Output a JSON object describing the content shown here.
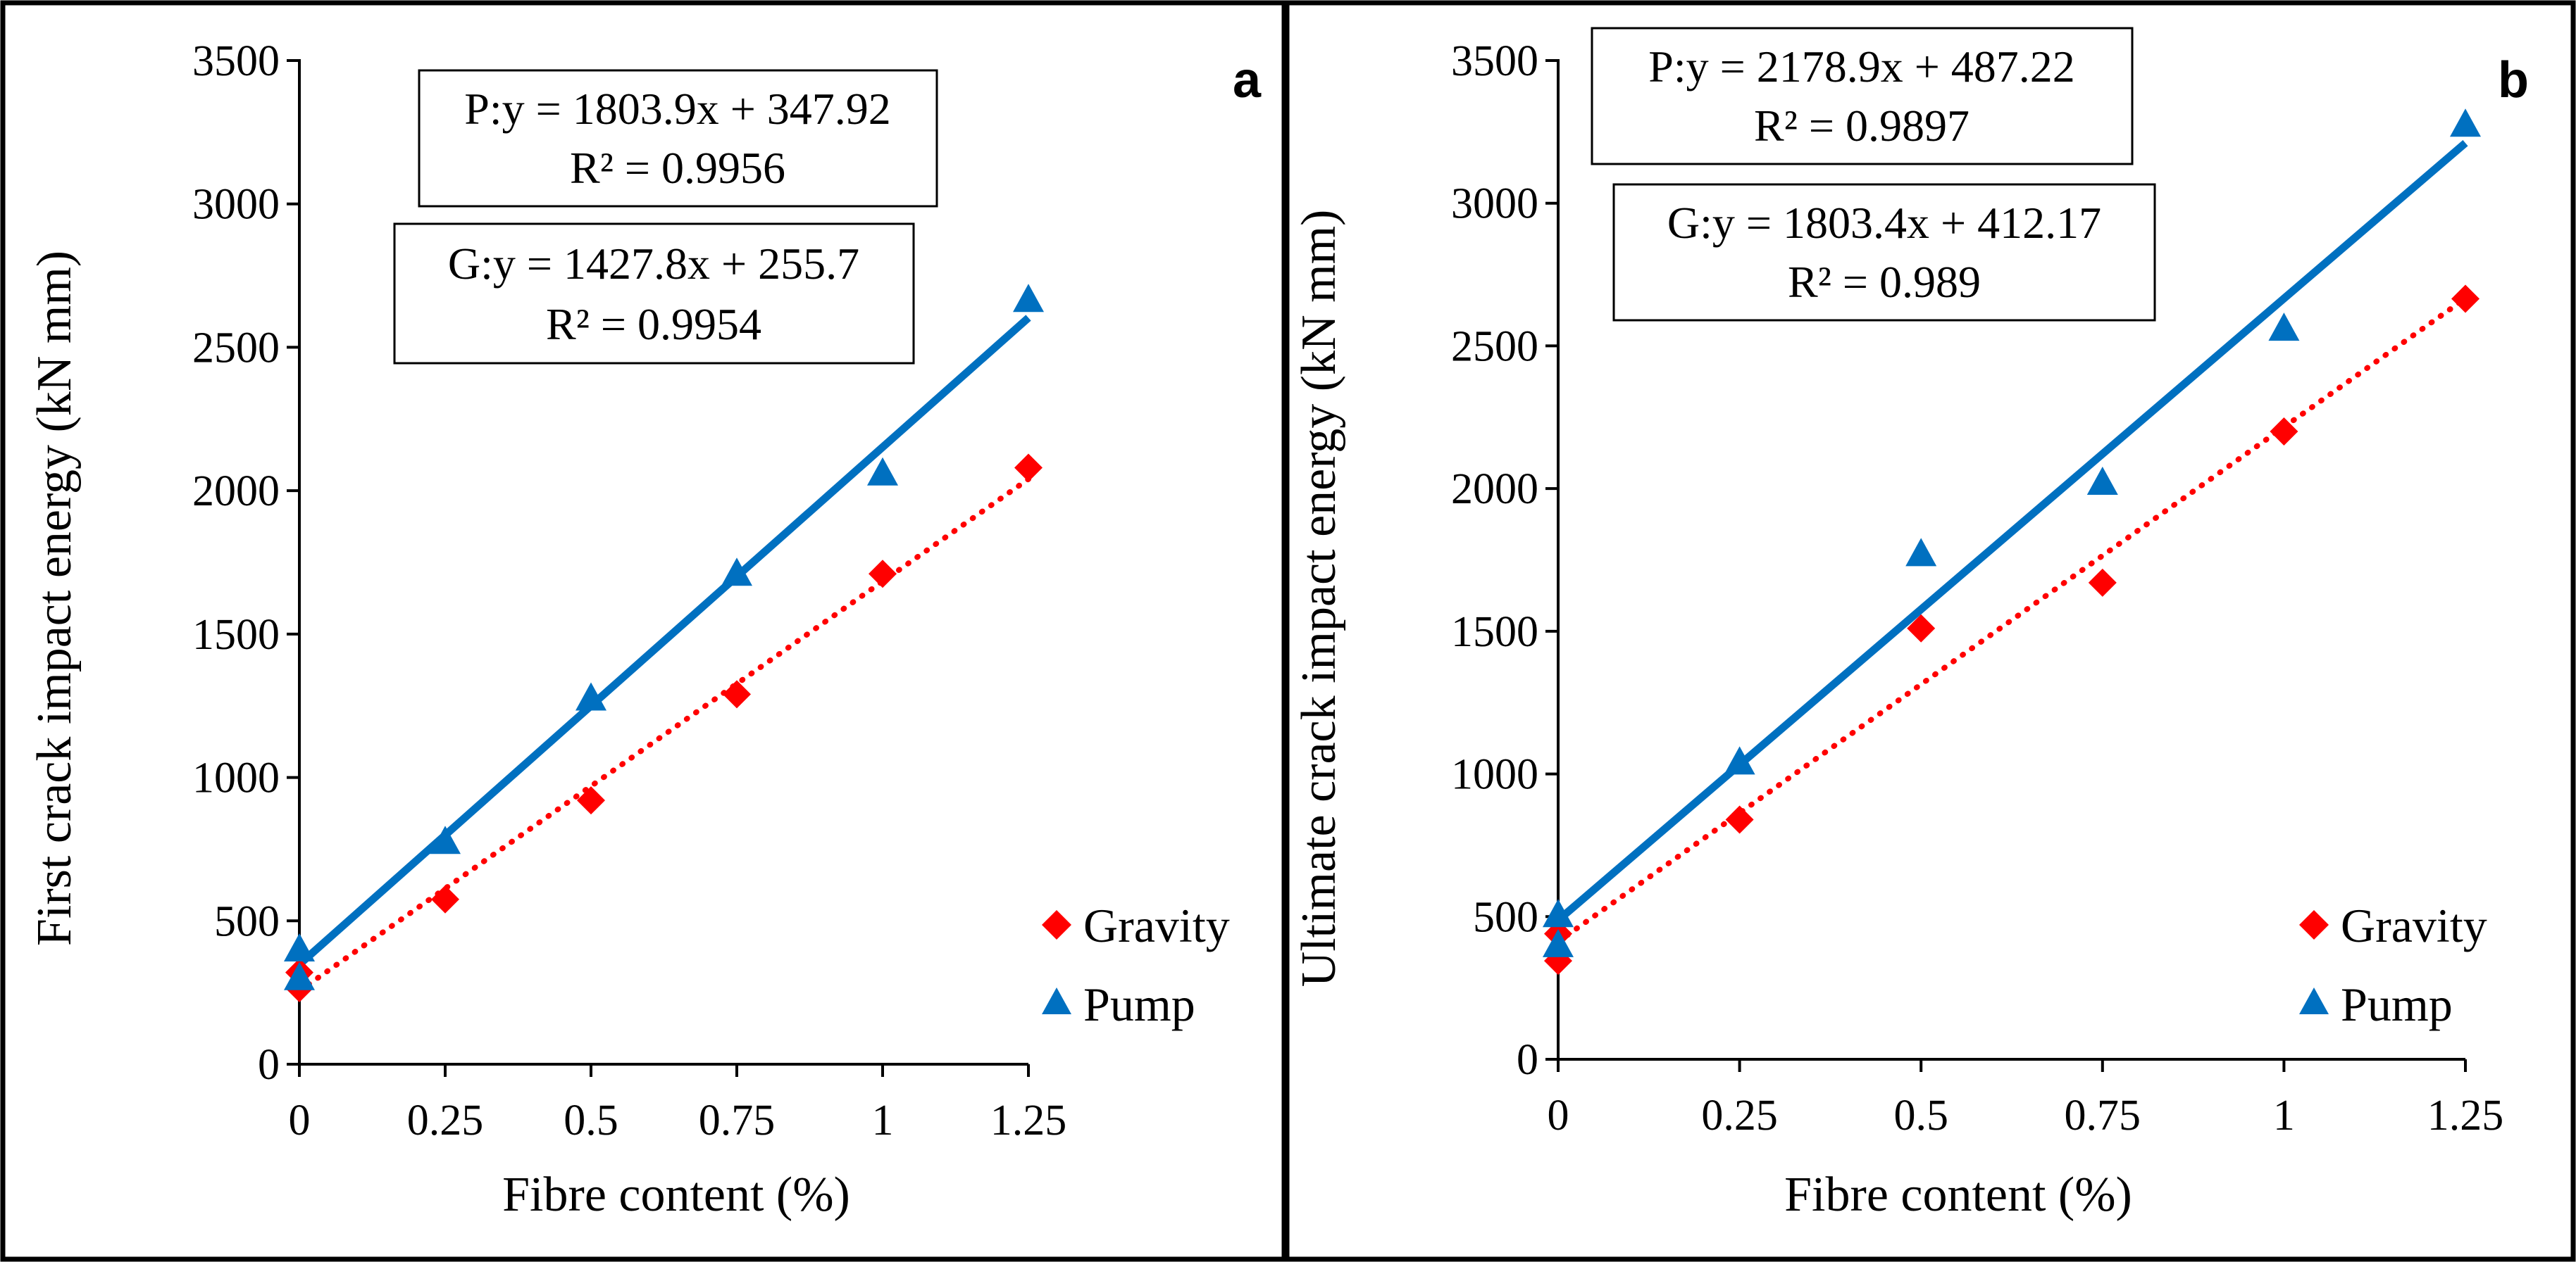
{
  "chart_data": [
    {
      "type": "scatter",
      "panel_label": "a",
      "xlabel": "Fibre content (%)",
      "ylabel": "First crack impact energy (kN mm)",
      "xlim": [
        0,
        1.25
      ],
      "ylim": [
        0,
        3500
      ],
      "x_ticks": [
        "0",
        "0.25",
        "0.5",
        "0.75",
        "1",
        "1.25"
      ],
      "y_ticks": [
        "0",
        "500",
        "1000",
        "1500",
        "2000",
        "2500",
        "3000",
        "3500"
      ],
      "legend": [
        "Gravity",
        "Pump"
      ],
      "legend_position": "bottom-right",
      "series": [
        {
          "name": "Gravity",
          "color": "#ff0000",
          "marker": "diamond",
          "points": [
            [
              0,
              320
            ],
            [
              0,
              265
            ],
            [
              0.25,
              575
            ],
            [
              0.5,
              920
            ],
            [
              0.75,
              1290
            ],
            [
              1,
              1710
            ],
            [
              1.25,
              2080
            ]
          ],
          "trendline": {
            "slope": 1427.8,
            "intercept": 255.7,
            "style": "dotted",
            "equation": "G:y = 1427.8x + 255.7",
            "r2": "R² = 0.9954"
          }
        },
        {
          "name": "Pump",
          "color": "#0070c0",
          "marker": "triangle",
          "points": [
            [
              0,
              400
            ],
            [
              0,
              300
            ],
            [
              0.25,
              775
            ],
            [
              0.5,
              1275
            ],
            [
              0.75,
              1710
            ],
            [
              1,
              2060
            ],
            [
              1.25,
              2665
            ]
          ],
          "trendline": {
            "slope": 1803.9,
            "intercept": 347.92,
            "style": "solid",
            "equation": "P:y = 1803.9x + 347.92",
            "r2": "R² = 0.9956"
          }
        }
      ]
    },
    {
      "type": "scatter",
      "panel_label": "b",
      "xlabel": "Fibre content (%)",
      "ylabel": "Ultimate crack impact energy (kN mm)",
      "xlim": [
        0,
        1.25
      ],
      "ylim": [
        0,
        3500
      ],
      "x_ticks": [
        "0",
        "0.25",
        "0.5",
        "0.75",
        "1",
        "1.25"
      ],
      "y_ticks": [
        "0",
        "500",
        "1000",
        "1500",
        "2000",
        "2500",
        "3000",
        "3500"
      ],
      "legend": [
        "Gravity",
        "Pump"
      ],
      "legend_position": "bottom-right",
      "series": [
        {
          "name": "Gravity",
          "color": "#ff0000",
          "marker": "diamond",
          "points": [
            [
              0,
              440
            ],
            [
              0,
              345
            ],
            [
              0.25,
              840
            ],
            [
              0.5,
              1510
            ],
            [
              0.75,
              1670
            ],
            [
              1,
              2200
            ],
            [
              1.25,
              2665
            ]
          ],
          "trendline": {
            "slope": 1803.4,
            "intercept": 412.17,
            "style": "dotted",
            "equation": "G:y = 1803.4x + 412.17",
            "r2": "R² = 0.989"
          }
        },
        {
          "name": "Pump",
          "color": "#0070c0",
          "marker": "triangle",
          "points": [
            [
              0,
              505
            ],
            [
              0,
              400
            ],
            [
              0.25,
              1040
            ],
            [
              0.5,
              1770
            ],
            [
              0.75,
              2020
            ],
            [
              1,
              2560
            ],
            [
              1.25,
              3275
            ]
          ],
          "trendline": {
            "slope": 2178.9,
            "intercept": 487.22,
            "style": "solid",
            "equation": "P:y = 2178.9x + 487.22",
            "r2": "R² = 0.9897"
          }
        }
      ]
    }
  ]
}
